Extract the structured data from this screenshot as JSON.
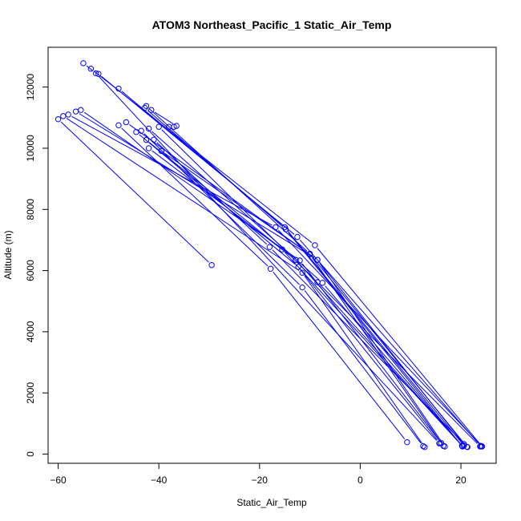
{
  "chart_data": {
    "type": "scatter",
    "title": "ATOM3 Northeast_Pacific_1 Static_Air_Temp",
    "xlabel": "Static_Air_Temp",
    "ylabel": "Altitude (m)",
    "xlim": [
      -62,
      27
    ],
    "ylim": [
      -300,
      13300
    ],
    "xticks": [
      -60,
      -40,
      -20,
      0,
      20
    ],
    "yticks": [
      0,
      2000,
      4000,
      6000,
      8000,
      10000,
      12000
    ],
    "xtick_labels": [
      "−60",
      "−40",
      "−20",
      "0",
      "20"
    ],
    "ytick_labels": [
      "0",
      "2000",
      "4000",
      "6000",
      "8000",
      "10000",
      "12000"
    ],
    "grid": false,
    "color": "#0000ff",
    "series": [
      {
        "x": [
          -55.0,
          -52.5,
          15.7
        ],
        "y": [
          12780,
          12450,
          350
        ]
      },
      {
        "x": [
          -53.5,
          -9.0,
          24.2
        ],
        "y": [
          12600,
          6830,
          250
        ]
      },
      {
        "x": [
          -52.0,
          -12.5,
          23.9
        ],
        "y": [
          12430,
          7100,
          270
        ]
      },
      {
        "x": [
          -48.0,
          -15.0,
          20.6
        ],
        "y": [
          11950,
          7420,
          280
        ]
      },
      {
        "x": [
          -42.5,
          -10.0,
          21.2
        ],
        "y": [
          11380,
          6550,
          240
        ]
      },
      {
        "x": [
          -41.5,
          -36.5
        ],
        "y": [
          11250,
          10730
        ]
      },
      {
        "x": [
          -42.8,
          -14.8,
          20.3
        ],
        "y": [
          11320,
          7350,
          250
        ]
      },
      {
        "x": [
          -60.0,
          -29.5
        ],
        "y": [
          10950,
          6180
        ]
      },
      {
        "x": [
          -59.0,
          -11.5,
          12.8
        ],
        "y": [
          11050,
          5930,
          230
        ]
      },
      {
        "x": [
          -58.0,
          -16.8,
          24.1
        ],
        "y": [
          11100,
          7420,
          260
        ]
      },
      {
        "x": [
          -56.5,
          -8.5,
          16.8
        ],
        "y": [
          11200,
          6350,
          250
        ]
      },
      {
        "x": [
          -55.5,
          -12.0,
          16.1
        ],
        "y": [
          11250,
          6330,
          360
        ]
      },
      {
        "x": [
          -48.0,
          -17.8,
          9.3
        ],
        "y": [
          10750,
          6060,
          390
        ]
      },
      {
        "x": [
          -46.5,
          -8.5,
          20.6
        ],
        "y": [
          10850,
          6350,
          330
        ]
      },
      {
        "x": [
          -44.5,
          -12.3,
          15.8
        ],
        "y": [
          10530,
          6120,
          360
        ]
      },
      {
        "x": [
          -43.5,
          -11.5,
          12.5
        ],
        "y": [
          10570,
          5450,
          260
        ]
      },
      {
        "x": [
          -42.5,
          -15.5,
          20.3
        ],
        "y": [
          10270,
          6690,
          260
        ]
      },
      {
        "x": [
          -42.0,
          -7.5,
          20.3
        ],
        "y": [
          10640,
          5600,
          260
        ]
      },
      {
        "x": [
          -41.0,
          -18.0,
          21.3
        ],
        "y": [
          10280,
          6770,
          230
        ]
      },
      {
        "x": [
          -40.0,
          -8.5,
          23.8
        ],
        "y": [
          10700,
          5620,
          250
        ]
      },
      {
        "x": [
          -39.5,
          -10.0,
          16.5
        ],
        "y": [
          9910,
          6530,
          270
        ]
      },
      {
        "x": [
          -42.0,
          -12.8,
          20.2
        ],
        "y": [
          10000,
          6350,
          280
        ]
      },
      {
        "x": [
          -38.0,
          -37.0
        ],
        "y": [
          10700,
          10700
        ]
      }
    ]
  }
}
